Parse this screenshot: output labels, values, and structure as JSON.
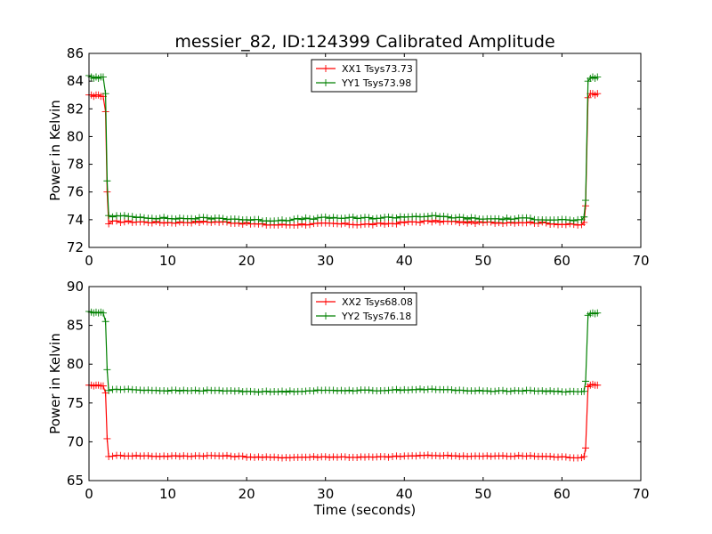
{
  "figure": {
    "title": "messier_82, ID:124399 Calibrated Amplitude"
  },
  "chart_data": [
    {
      "type": "line",
      "title": "messier_82, ID:124399 Calibrated Amplitude",
      "xlabel": "",
      "ylabel": "Power in Kelvin",
      "xlim": [
        0,
        70
      ],
      "ylim": [
        72,
        86
      ],
      "xticks": [
        0,
        10,
        20,
        30,
        40,
        50,
        60,
        70
      ],
      "yticks": [
        72,
        74,
        76,
        78,
        80,
        82,
        84,
        86
      ],
      "grid": false,
      "legend": "top-center",
      "on_source": {
        "start": 2.5,
        "end": 62.8
      },
      "series": [
        {
          "name": "XX1 Tsys73.73",
          "color": "#ff0000",
          "marker": "+",
          "on_level": 83.0,
          "off_level": 73.75,
          "x": [
            0.0,
            0.3,
            0.6,
            0.9,
            1.2,
            1.5,
            1.8,
            2.1,
            2.3,
            2.5,
            62.8,
            63.0,
            63.3,
            63.6,
            63.9,
            64.2,
            64.5
          ],
          "y": [
            83.0,
            83.0,
            82.9,
            83.0,
            83.0,
            82.9,
            82.9,
            81.8,
            76.0,
            73.7,
            73.8,
            75.0,
            82.8,
            83.1,
            83.1,
            83.0,
            83.1
          ]
        },
        {
          "name": "YY1 Tsys73.98",
          "color": "#008000",
          "marker": "+",
          "on_level": 84.3,
          "off_level": 74.1,
          "x": [
            0.0,
            0.3,
            0.6,
            0.9,
            1.2,
            1.5,
            1.8,
            2.1,
            2.3,
            2.5,
            62.8,
            63.0,
            63.3,
            63.6,
            63.9,
            64.2,
            64.5
          ],
          "y": [
            84.4,
            84.3,
            84.2,
            84.3,
            84.2,
            84.3,
            84.3,
            83.1,
            76.8,
            74.3,
            74.2,
            75.4,
            84.0,
            84.2,
            84.3,
            84.2,
            84.3
          ]
        }
      ]
    },
    {
      "type": "line",
      "title": "",
      "xlabel": "Time (seconds)",
      "ylabel": "Power in Kelvin",
      "xlim": [
        0,
        70
      ],
      "ylim": [
        65,
        90
      ],
      "xticks": [
        0,
        10,
        20,
        30,
        40,
        50,
        60,
        70
      ],
      "yticks": [
        65,
        70,
        75,
        80,
        85,
        90
      ],
      "grid": false,
      "legend": "top-center",
      "on_source": {
        "start": 2.5,
        "end": 62.8
      },
      "series": [
        {
          "name": "XX2 Tsys68.08",
          "color": "#ff0000",
          "marker": "+",
          "on_level": 77.3,
          "off_level": 68.1,
          "x": [
            0.0,
            0.3,
            0.6,
            0.9,
            1.2,
            1.5,
            1.8,
            2.1,
            2.3,
            2.5,
            62.8,
            63.0,
            63.3,
            63.6,
            63.9,
            64.2,
            64.5
          ],
          "y": [
            77.3,
            77.3,
            77.2,
            77.3,
            77.3,
            77.2,
            77.2,
            76.3,
            70.4,
            68.1,
            68.1,
            69.2,
            77.1,
            77.3,
            77.4,
            77.3,
            77.3
          ]
        },
        {
          "name": "YY2 Tsys76.18",
          "color": "#008000",
          "marker": "+",
          "on_level": 86.6,
          "off_level": 76.6,
          "x": [
            0.0,
            0.3,
            0.6,
            0.9,
            1.2,
            1.5,
            1.8,
            2.1,
            2.3,
            2.5,
            62.8,
            63.0,
            63.3,
            63.6,
            63.9,
            64.2,
            64.5
          ],
          "y": [
            86.8,
            86.7,
            86.6,
            86.7,
            86.6,
            86.7,
            86.6,
            85.5,
            79.3,
            76.6,
            76.5,
            77.8,
            86.3,
            86.5,
            86.6,
            86.5,
            86.6
          ]
        }
      ]
    }
  ]
}
